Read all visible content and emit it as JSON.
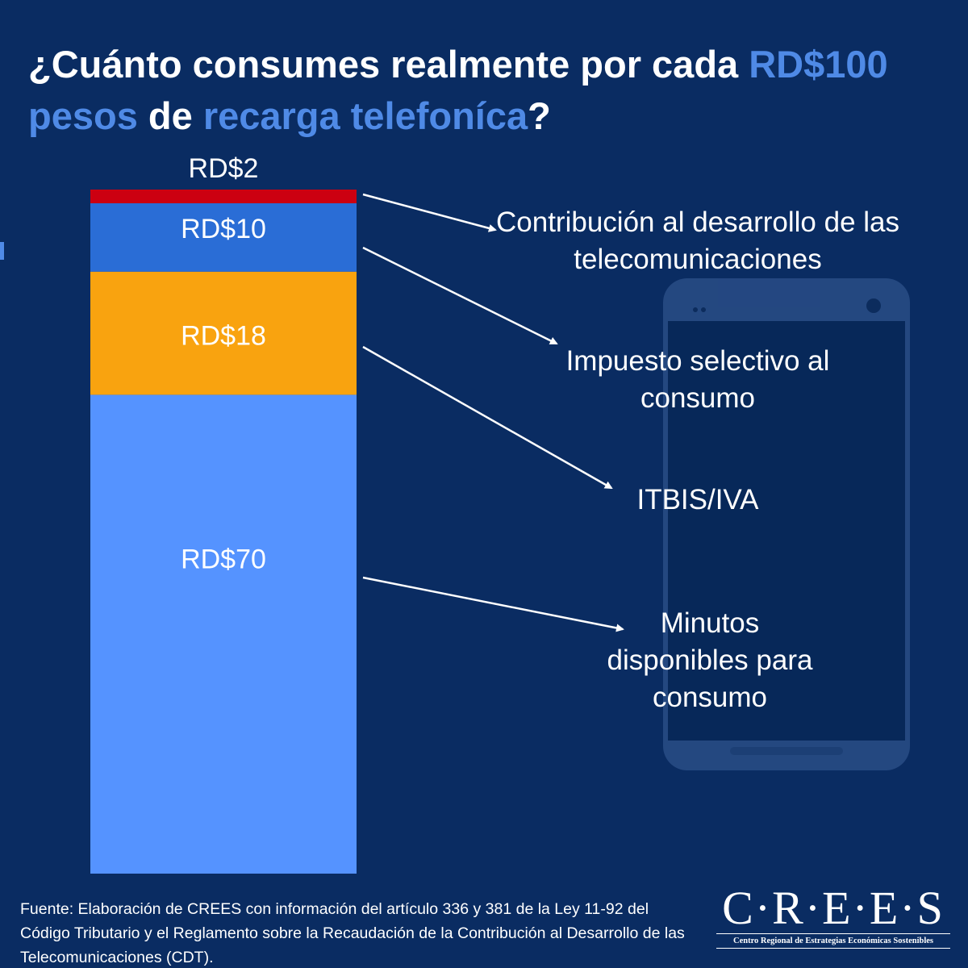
{
  "chart_data": {
    "type": "stacked_bar",
    "title_parts": [
      {
        "text": "¿Cuánto consumes realmente por cada ",
        "color": "#ffffff"
      },
      {
        "text": "RD$100",
        "color": "#4f8ae6"
      },
      {
        "text": " pesos",
        "color": "#4f8ae6"
      },
      {
        "text": " de ",
        "color": "#ffffff"
      },
      {
        "text": "recarga telefoníca",
        "color": "#4f8ae6"
      },
      {
        "text": "?",
        "color": "#ffffff"
      }
    ],
    "categories": [
      null
    ],
    "ylim": [
      0,
      100
    ],
    "series": [
      {
        "name": "Minutos disponibles para consumo",
        "color": "#5593ff",
        "values": [
          70
        ],
        "value_labels": [
          "RD$70"
        ]
      },
      {
        "name": "ITBIS/IVA",
        "color": "#f9a30f",
        "values": [
          18
        ],
        "value_labels": [
          "RD$18"
        ]
      },
      {
        "name": "Impuesto selectivo al consumo",
        "color": "#2a6dd6",
        "values": [
          10
        ],
        "value_labels": [
          "RD$10"
        ]
      },
      {
        "name": "Contribución al desarrollo de las telecomunicaciones",
        "color": "#cc0011",
        "values": [
          2
        ],
        "value_labels": [
          "RD$2"
        ]
      }
    ],
    "source": "Fuente: Elaboración de CREES con información del artículo 336 y 381 de la Ley 11-92 del Código Tributario y el Reglamento sobre la Recaudación de la Contribución al Desarrollo de las Telecomunicaciones (CDT).",
    "logo": {
      "name": "C·R·E·E·S",
      "subtitle": "Centro Regional de Estrategias Económicas Sostenibles"
    }
  }
}
